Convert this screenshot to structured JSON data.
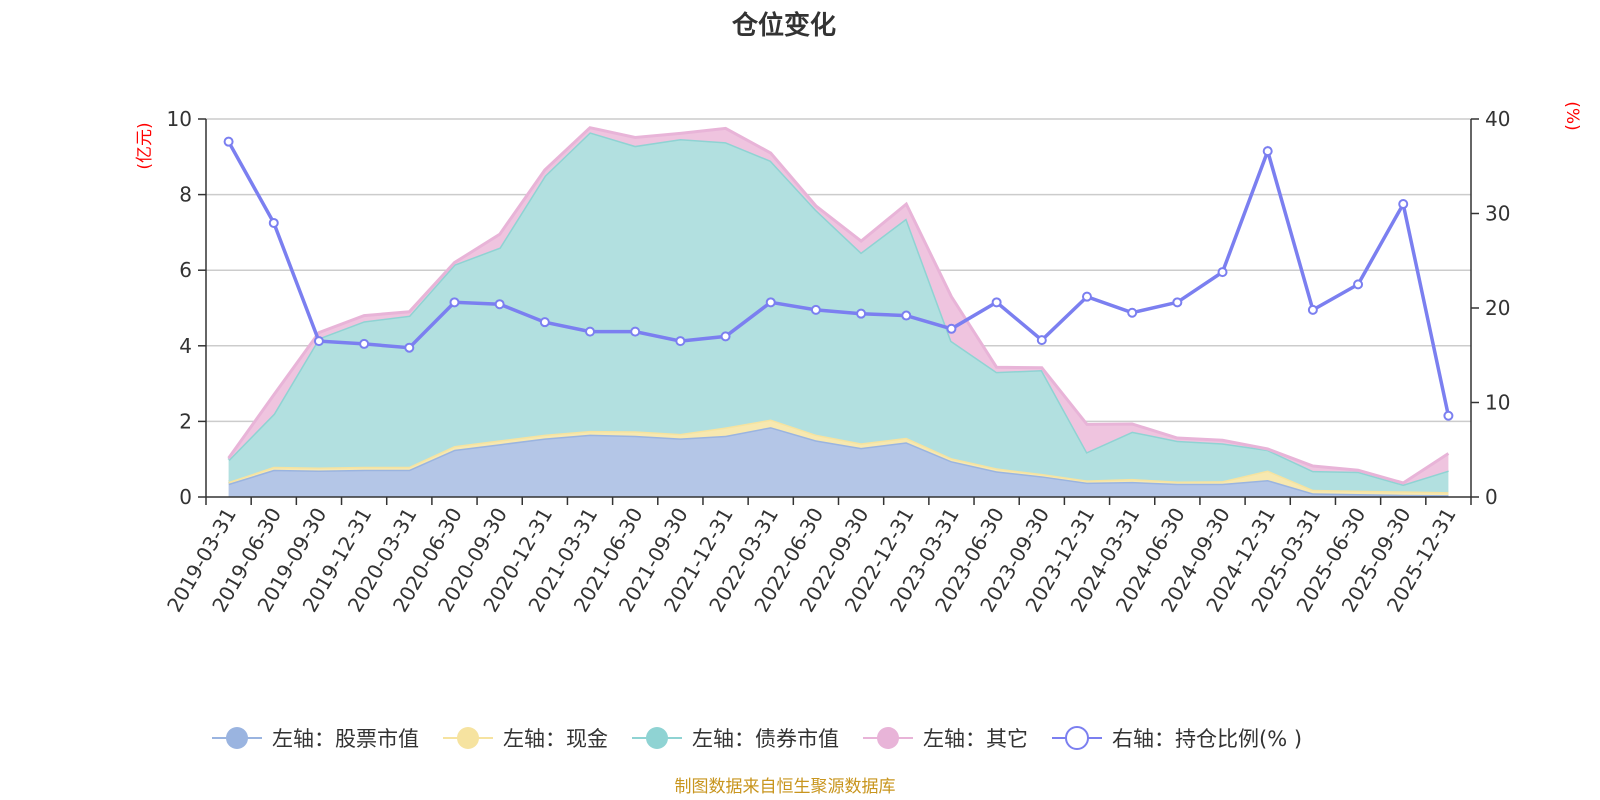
{
  "title": "仓位变化",
  "source": "制图数据来自恒生聚源数据库",
  "left_unit": "(亿元)",
  "right_unit": "(%)",
  "chart_data": {
    "type": "area",
    "title": "仓位变化",
    "categories": [
      "2019-03-31",
      "2019-06-30",
      "2019-09-30",
      "2019-12-31",
      "2020-03-31",
      "2020-06-30",
      "2020-09-30",
      "2020-12-31",
      "2021-03-31",
      "2021-06-30",
      "2021-09-30",
      "2021-12-31",
      "2022-03-31",
      "2022-06-30",
      "2022-09-30",
      "2022-12-31",
      "2023-03-31",
      "2023-06-30",
      "2023-09-30",
      "2023-12-31",
      "2024-03-31",
      "2024-06-30",
      "2024-09-30",
      "2024-12-31",
      "2025-03-31",
      "2025-06-30",
      "2025-09-30",
      "2025-12-31"
    ],
    "left_axis": {
      "unit": "(亿元)",
      "ylim": [
        0,
        10
      ],
      "ticks": [
        "0",
        "2",
        "4",
        "6",
        "8",
        "10"
      ]
    },
    "right_axis": {
      "unit": "(%)",
      "ylim": [
        0,
        40
      ],
      "ticks": [
        "0",
        "10",
        "20",
        "30",
        "40"
      ]
    },
    "grid": true,
    "legend_position": "bottom",
    "series": [
      {
        "name": "左轴：股票市值",
        "axis": "left",
        "stacked": true,
        "color": "#9ab4e0",
        "fill": "#b4c6e7",
        "values": [
          0.35,
          0.72,
          0.7,
          0.72,
          0.72,
          1.25,
          1.4,
          1.55,
          1.65,
          1.62,
          1.55,
          1.62,
          1.85,
          1.5,
          1.3,
          1.45,
          0.95,
          0.68,
          0.55,
          0.38,
          0.4,
          0.35,
          0.35,
          0.45,
          0.1,
          0.08,
          0.06,
          0.05
        ]
      },
      {
        "name": "左轴：现金",
        "axis": "left",
        "stacked": true,
        "color": "#f6e3a0",
        "fill": "#f7e8b0",
        "values": [
          0.05,
          0.08,
          0.08,
          0.08,
          0.08,
          0.1,
          0.1,
          0.1,
          0.1,
          0.12,
          0.12,
          0.22,
          0.2,
          0.15,
          0.12,
          0.12,
          0.08,
          0.08,
          0.06,
          0.06,
          0.08,
          0.06,
          0.07,
          0.25,
          0.09,
          0.09,
          0.09,
          0.08
        ]
      },
      {
        "name": "左轴：债券市值",
        "axis": "left",
        "stacked": true,
        "color": "#8fd3d3",
        "fill": "#b2e0e0",
        "values": [
          0.58,
          1.4,
          3.42,
          3.85,
          4.0,
          4.8,
          5.1,
          6.85,
          7.9,
          7.55,
          7.8,
          7.55,
          6.85,
          5.95,
          5.05,
          5.8,
          3.1,
          2.55,
          2.75,
          0.75,
          1.25,
          1.08,
          1.0,
          0.55,
          0.5,
          0.5,
          0.18,
          0.57
        ]
      },
      {
        "name": "左轴：其它",
        "axis": "left",
        "stacked": true,
        "color": "#e8b4d8",
        "fill": "#efc4df",
        "values": [
          0.05,
          0.5,
          0.15,
          0.15,
          0.1,
          0.05,
          0.35,
          0.15,
          0.12,
          0.22,
          0.15,
          0.36,
          0.2,
          0.1,
          0.3,
          0.38,
          1.17,
          0.12,
          0.06,
          0.73,
          0.2,
          0.07,
          0.08,
          0.02,
          0.13,
          0.04,
          0.04,
          0.45
        ]
      },
      {
        "name": "右轴：持仓比例(%)",
        "axis": "right",
        "stacked": false,
        "color": "#7b7ff0",
        "values": [
          37.6,
          29.0,
          16.5,
          16.2,
          15.8,
          20.6,
          20.4,
          18.5,
          17.5,
          17.5,
          16.5,
          17.0,
          20.6,
          19.8,
          19.4,
          19.2,
          17.8,
          20.6,
          16.6,
          21.2,
          19.5,
          20.6,
          23.8,
          36.6,
          19.8,
          22.5,
          31.0,
          8.6
        ]
      }
    ],
    "legend_labels": [
      "左轴：股票市值",
      "左轴：现金",
      "左轴：债券市值",
      "左轴：其它",
      "右轴：持仓比例(% )"
    ]
  }
}
